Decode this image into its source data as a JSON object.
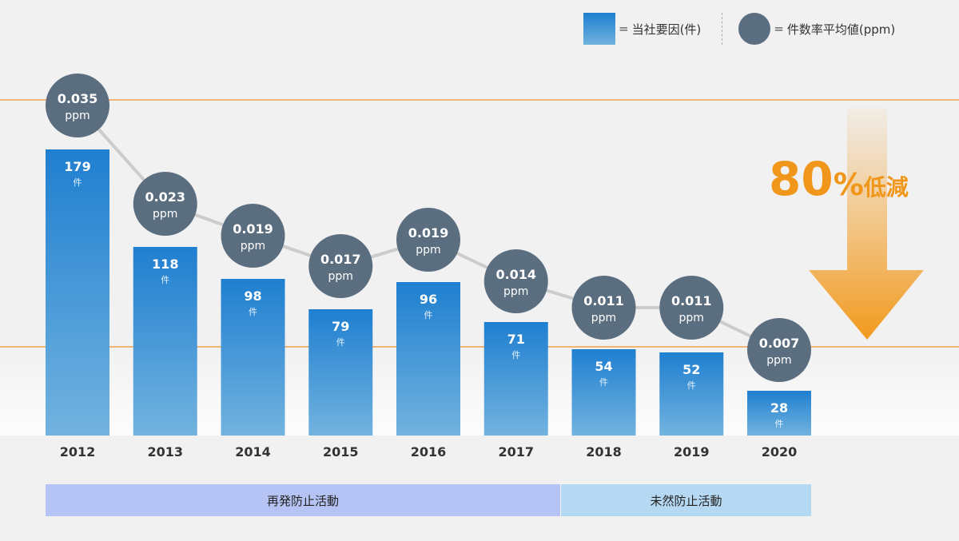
{
  "legend": {
    "bar_label": "当社要因(件)",
    "dot_label": "件数率平均値(ppm)",
    "equals": "="
  },
  "reduction": {
    "value": "80",
    "percent": "%",
    "text": "低減"
  },
  "activities": {
    "recurrence": "再発防止活動",
    "prevention": "未然防止活動"
  },
  "colors": {
    "bar_top": "#1f7fd0",
    "bar_bottom": "#72b3df",
    "circle": "#5b6e80",
    "line": "#cccccc",
    "reference_line": "#f0a04b",
    "arrow": "#f29a1e"
  },
  "chart_data": {
    "type": "bar",
    "categories": [
      "2012",
      "2013",
      "2014",
      "2015",
      "2016",
      "2017",
      "2018",
      "2019",
      "2020"
    ],
    "series": [
      {
        "name": "当社要因(件)",
        "type": "bar",
        "values": [
          179,
          118,
          98,
          79,
          96,
          71,
          54,
          52,
          28
        ],
        "unit": "件"
      },
      {
        "name": "件数率平均値(ppm)",
        "type": "line",
        "values": [
          0.035,
          0.023,
          0.019,
          0.017,
          0.019,
          0.014,
          0.011,
          0.011,
          0.007
        ],
        "unit": "ppm"
      }
    ],
    "ylim": [
      0,
      179
    ],
    "grid": false
  }
}
